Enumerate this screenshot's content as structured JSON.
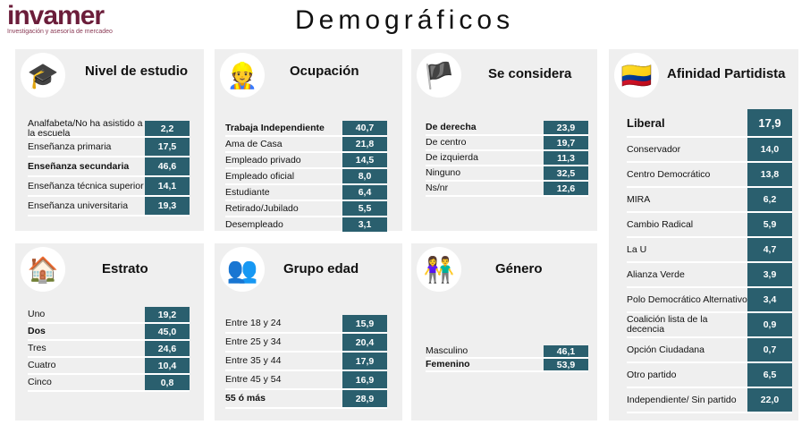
{
  "header": {
    "logo": "invamer",
    "logo_tagline": "Investigación y asesoría de mercadeo",
    "title": "Demográficos"
  },
  "colors": {
    "value_bg": "#2a5f6e",
    "panel_bg": "#efefef",
    "brand": "#6b1d3a"
  },
  "panels": {
    "estudio": {
      "title": "Nivel de estudio",
      "icon": "graduation-cap-icon",
      "rows": [
        {
          "label": "Analfabeta/No ha asistido a la escuela",
          "value": "2,2"
        },
        {
          "label": "Enseñanza primaria",
          "value": "17,5"
        },
        {
          "label": "Enseñanza secundaria",
          "value": "46,6"
        },
        {
          "label": "Enseñanza técnica superior",
          "value": "14,1"
        },
        {
          "label": "Enseñanza universitaria",
          "value": "19,3"
        }
      ]
    },
    "ocupacion": {
      "title": "Ocupación",
      "icon": "worker-icon",
      "rows": [
        {
          "label": "Trabaja Independiente",
          "value": "40,7"
        },
        {
          "label": "Ama de Casa",
          "value": "21,8"
        },
        {
          "label": "Empleado privado",
          "value": "14,5"
        },
        {
          "label": "Empleado oficial",
          "value": "8,0"
        },
        {
          "label": "Estudiante",
          "value": "6,4"
        },
        {
          "label": "Retirado/Jubilado",
          "value": "5,5"
        },
        {
          "label": "Desempleado",
          "value": "3,1"
        }
      ]
    },
    "considera": {
      "title": "Se considera",
      "icon": "flag-icon",
      "rows": [
        {
          "label": "De derecha",
          "value": "23,9"
        },
        {
          "label": "De centro",
          "value": "19,7"
        },
        {
          "label": "De izquierda",
          "value": "11,3"
        },
        {
          "label": "Ninguno",
          "value": "32,5"
        },
        {
          "label": "Ns/nr",
          "value": "12,6"
        }
      ]
    },
    "afinidad": {
      "title": "Afinidad Partidista",
      "icon": "colombia-flag-icon",
      "rows": [
        {
          "label": "Liberal",
          "value": "17,9"
        },
        {
          "label": "Conservador",
          "value": "14,0"
        },
        {
          "label": "Centro Democrático",
          "value": "13,8"
        },
        {
          "label": "MIRA",
          "value": "6,2"
        },
        {
          "label": "Cambio Radical",
          "value": "5,9"
        },
        {
          "label": "La U",
          "value": "4,7"
        },
        {
          "label": "Alianza Verde",
          "value": "3,9"
        },
        {
          "label": "Polo Democrático Alternativo",
          "value": "3,4"
        },
        {
          "label": "Coalición lista de la decencia",
          "value": "0,9"
        },
        {
          "label": "Opción Ciudadana",
          "value": "0,7"
        },
        {
          "label": "Otro partido",
          "value": "6,5"
        },
        {
          "label": "Independiente/ Sin partido",
          "value": "22,0"
        }
      ]
    },
    "estrato": {
      "title": "Estrato",
      "icon": "house-icon",
      "rows": [
        {
          "label": "Uno",
          "value": "19,2"
        },
        {
          "label": "Dos",
          "value": "45,0"
        },
        {
          "label": "Tres",
          "value": "24,6"
        },
        {
          "label": "Cuatro",
          "value": "10,4"
        },
        {
          "label": "Cinco",
          "value": "0,8"
        }
      ]
    },
    "edad": {
      "title": "Grupo edad",
      "icon": "people-group-icon",
      "rows": [
        {
          "label": "Entre 18 y 24",
          "value": "15,9"
        },
        {
          "label": "Entre 25 y 34",
          "value": "20,4"
        },
        {
          "label": "Entre 35 y 44",
          "value": "17,9"
        },
        {
          "label": "Entre 45 y 54",
          "value": "16,9"
        },
        {
          "label": "55 ó más",
          "value": "28,9"
        }
      ]
    },
    "genero": {
      "title": "Género",
      "icon": "man-woman-icon",
      "rows": [
        {
          "label": "Masculino",
          "value": "46,1"
        },
        {
          "label": "Femenino",
          "value": "53,9"
        }
      ]
    }
  }
}
